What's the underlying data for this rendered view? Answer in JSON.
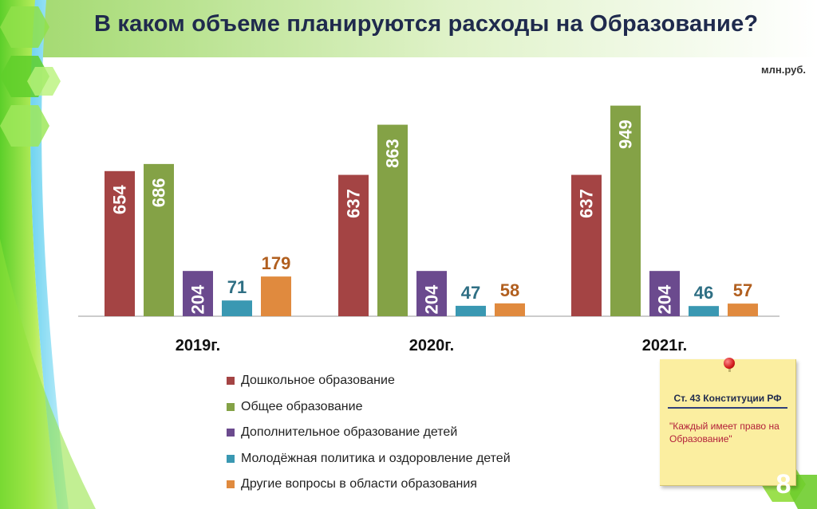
{
  "header": {
    "title": "В каком объеме планируются расходы на Образование?"
  },
  "unit_label": "млн.руб.",
  "colors": {
    "preschool": "#a44444",
    "general": "#84a246",
    "additional": "#6b4a8e",
    "youth": "#3a98b2",
    "other": "#e08a3e",
    "title": "#1f2a4d",
    "note_bg": "#fbeea0",
    "note_quote": "#b3203a"
  },
  "chart_data": {
    "type": "bar",
    "title": "В каком объеме планируются расходы на Образование?",
    "ylabel": "млн.руб.",
    "categories": [
      "2019г.",
      "2020г.",
      "2021г."
    ],
    "series": [
      {
        "name": "Дошкольное образование",
        "values": [
          654,
          637,
          637
        ]
      },
      {
        "name": "Общее образование",
        "values": [
          686,
          863,
          949
        ]
      },
      {
        "name": "Дополнительное образование детей",
        "values": [
          204,
          204,
          204
        ]
      },
      {
        "name": "Молодёжная политика и оздоровление детей",
        "values": [
          71,
          47,
          46
        ]
      },
      {
        "name": "Другие вопросы в области образования",
        "values": [
          179,
          58,
          57
        ]
      }
    ],
    "ylim": [
      0,
      1000
    ],
    "grid": false,
    "legend_position": "bottom-left"
  },
  "note": {
    "heading": "Ст. 43 Конституции РФ",
    "quote": "\"Каждый имеет право на Образование\""
  },
  "page_number": "8"
}
